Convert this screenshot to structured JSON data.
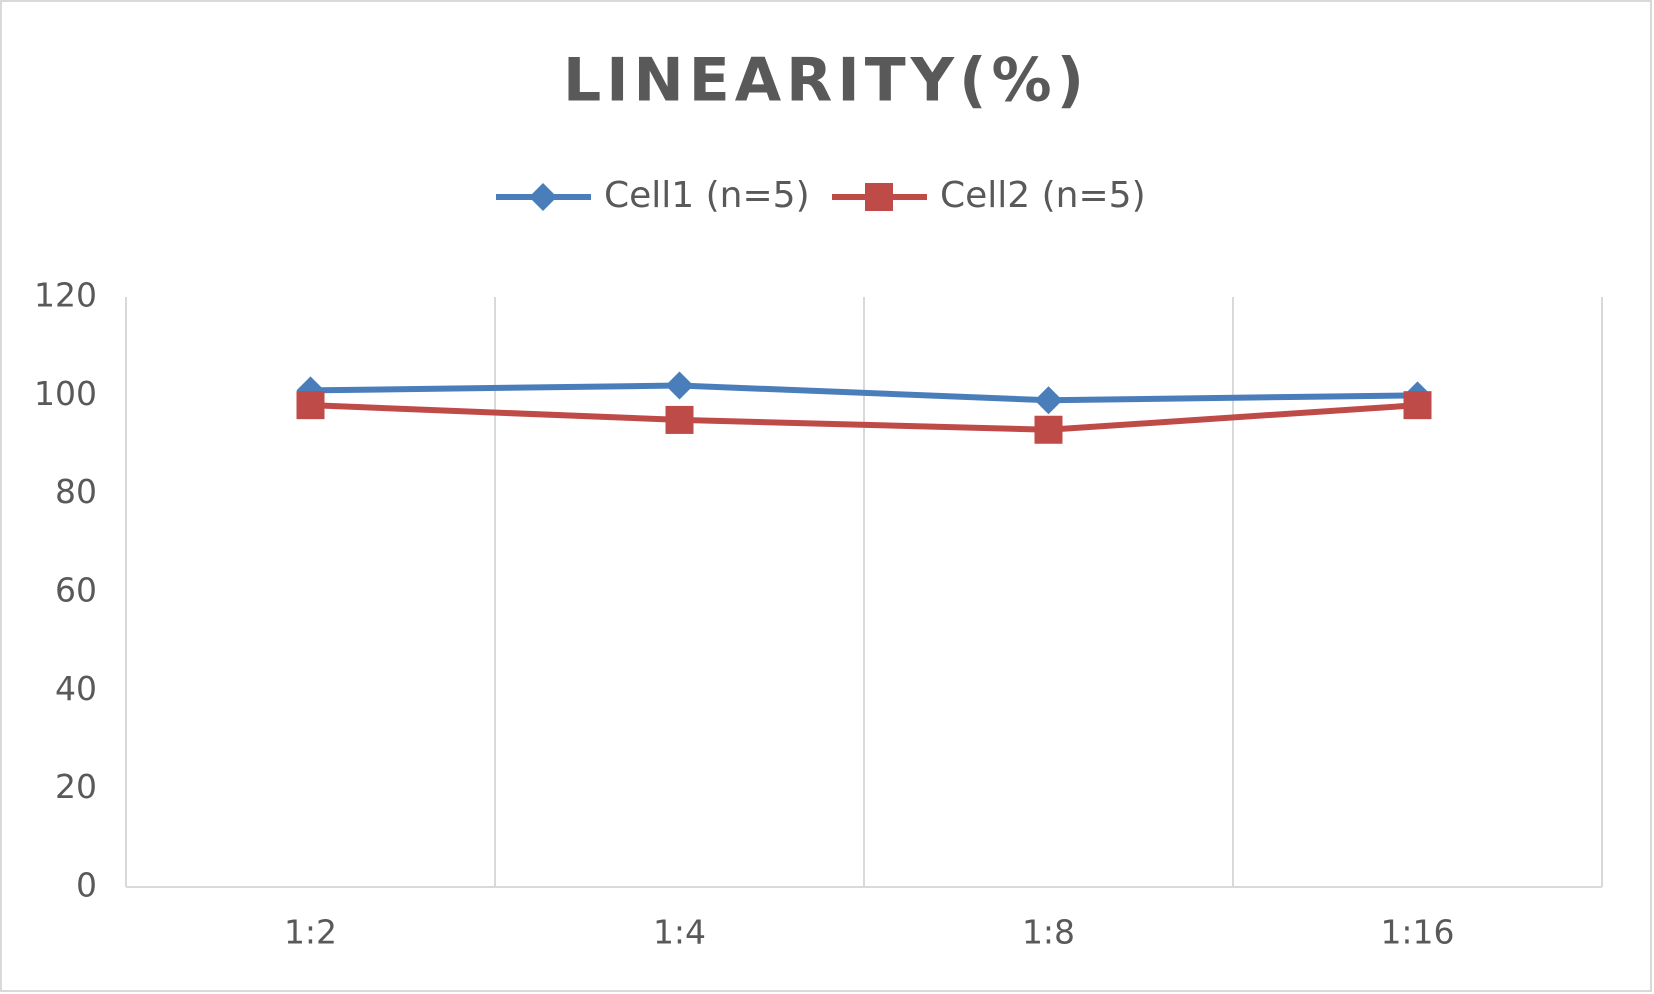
{
  "chart_data": {
    "type": "line",
    "title": "LINEARITY(%)",
    "categories": [
      "1:2",
      "1:4",
      "1:8",
      "1:16"
    ],
    "series": [
      {
        "name": "Cell1 (n=5)",
        "color": "#4a7ebb",
        "marker": "diamond",
        "values": [
          101,
          102,
          99,
          100
        ]
      },
      {
        "name": "Cell2 (n=5)",
        "color": "#be4b48",
        "marker": "square",
        "values": [
          98,
          95,
          93,
          98
        ]
      }
    ],
    "ylim": [
      0,
      120
    ],
    "yticks": [
      0,
      20,
      40,
      60,
      80,
      100,
      120
    ],
    "legend": "top"
  }
}
